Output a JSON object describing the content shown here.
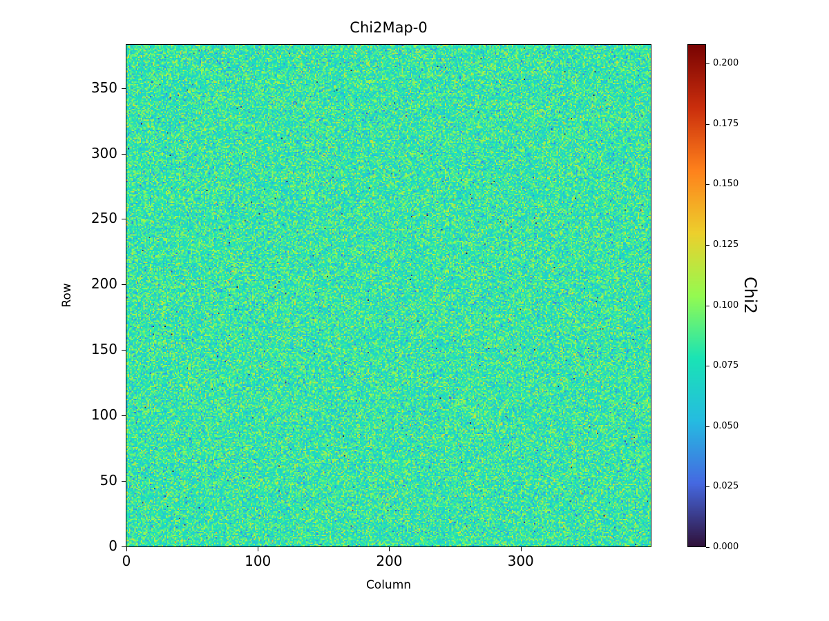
{
  "chart_data": {
    "type": "heatmap",
    "title": "Chi2Map-0",
    "xlabel": "Column",
    "ylabel": "Row",
    "colorbar_label": "Chi2",
    "colormap": "turbo",
    "colormap_stops": [
      [
        0.0,
        "#30123b"
      ],
      [
        0.125,
        "#4669e1"
      ],
      [
        0.25,
        "#26bce1"
      ],
      [
        0.375,
        "#1ae4b6"
      ],
      [
        0.5,
        "#95fb51"
      ],
      [
        0.625,
        "#edd02d"
      ],
      [
        0.75,
        "#ff821c"
      ],
      [
        0.875,
        "#cb2f0d"
      ],
      [
        1.0,
        "#7a0403"
      ]
    ],
    "n_cols": 400,
    "n_rows": 384,
    "xlim": [
      -0.5,
      399.5
    ],
    "ylim": [
      -0.5,
      383.5
    ],
    "x_tick_values": [
      0,
      100,
      200,
      300
    ],
    "x_tick_labels": [
      "0",
      "100",
      "200",
      "300"
    ],
    "y_tick_values": [
      0,
      50,
      100,
      150,
      200,
      250,
      300,
      350
    ],
    "y_tick_labels": [
      "0",
      "50",
      "100",
      "150",
      "200",
      "250",
      "300",
      "350"
    ],
    "vmin": 0.0,
    "vmax": 0.208,
    "colorbar_tick_values": [
      0.0,
      0.025,
      0.05,
      0.075,
      0.1,
      0.125,
      0.15,
      0.175,
      0.2
    ],
    "colorbar_tick_labels": [
      "0.000",
      "0.025",
      "0.050",
      "0.075",
      "0.100",
      "0.125",
      "0.150",
      "0.175",
      "0.200"
    ],
    "value_stats": {
      "distribution": "random noise (chi2 per pixel)",
      "approx_mean": 0.08,
      "approx_std": 0.018,
      "observed_min": 0.0,
      "observed_max": 0.208
    },
    "text_color": "#000000",
    "background_color": "#ffffff"
  }
}
